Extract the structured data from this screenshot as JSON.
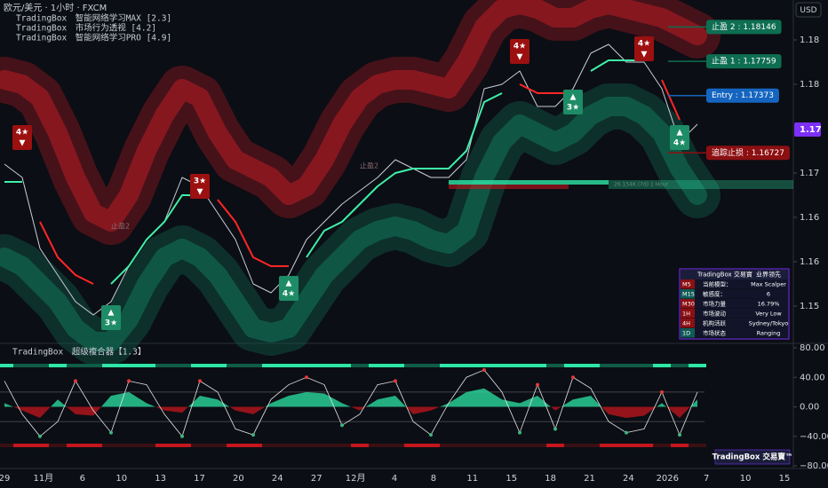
{
  "header": {
    "symbol": "欧元/美元 · 1小时 · FXCM",
    "indicators": [
      "TradingBox　智能网络学习MAX [2.3]",
      "TradingBox　市场行为透视 [4.2]",
      "TradingBox　智能网络学习PRO [4.9]"
    ]
  },
  "currency": "USD",
  "x_axis_labels": [
    "29",
    "11月",
    "6",
    "10",
    "13",
    "17",
    "20",
    "24",
    "27",
    "12月",
    "4",
    "8",
    "11",
    "15",
    "18",
    "21",
    "24",
    "2026",
    "7",
    "10",
    "15"
  ],
  "chart_data": [
    {
      "type": "line",
      "ylim": [
        1.146,
        1.1845
      ],
      "yticks": [
        1.18,
        {
          "value": 1.175,
          "label": "1.18"
        },
        {
          "value": 1.165,
          "label": "1.17"
        },
        1.16,
        {
          "value": 1.155,
          "label": "1.16"
        },
        1.15
      ],
      "current_price": {
        "value": 1.1699,
        "label": "1.17",
        "color": "#7b2ff7"
      },
      "bands": [
        {
          "color": "#8e1820",
          "values": [
            1.1755,
            1.175,
            1.1735,
            1.1695,
            1.1645,
            1.1605,
            1.1595,
            1.1625,
            1.1675,
            1.1715,
            1.1745,
            1.1735,
            1.1695,
            1.1665,
            1.1655,
            1.1645,
            1.1625,
            1.1635,
            1.1665,
            1.1705,
            1.1735,
            1.175,
            1.1755,
            1.1755,
            1.175,
            1.1745,
            1.1775,
            1.1815,
            1.1835,
            1.184,
            1.1835,
            1.1825,
            1.1825,
            1.1835,
            1.184,
            1.1835,
            1.183,
            1.1825,
            1.1815,
            1.1805
          ]
        },
        {
          "color": "#0f5c47",
          "values": [
            1.1555,
            1.1545,
            1.1525,
            1.1505,
            1.1475,
            1.146,
            1.146,
            1.1485,
            1.1525,
            1.1555,
            1.1565,
            1.1555,
            1.1535,
            1.1505,
            1.1475,
            1.147,
            1.1475,
            1.1505,
            1.1535,
            1.1555,
            1.1575,
            1.1585,
            1.159,
            1.1585,
            1.1575,
            1.157,
            1.1585,
            1.1645,
            1.1685,
            1.1705,
            1.1695,
            1.1685,
            1.1695,
            1.1715,
            1.1725,
            1.1725,
            1.1715,
            1.1695,
            1.1655,
            1.1625
          ]
        }
      ],
      "series": [
        {
          "color": "#c9ced8",
          "values": [
            1.166,
            1.1645,
            1.1565,
            1.1535,
            1.1505,
            1.149,
            1.1505,
            1.1545,
            1.1575,
            1.1595,
            1.1645,
            1.1635,
            1.1605,
            1.1575,
            1.1525,
            1.1515,
            1.1535,
            1.1575,
            1.1595,
            1.1615,
            1.163,
            1.1645,
            1.1665,
            1.1655,
            1.1645,
            1.1645,
            1.1665,
            1.1745,
            1.175,
            1.1765,
            1.1725,
            1.1725,
            1.1745,
            1.1785,
            1.1795,
            1.1775,
            1.1775,
            1.1745,
            1.1685,
            1.1705
          ]
        },
        {
          "color": "#3ff0a8",
          "values": [
            1.164,
            1.164,
            null,
            null,
            null,
            null,
            1.1525,
            1.1545,
            1.1575,
            1.1595,
            1.1625,
            1.1625,
            null,
            null,
            null,
            null,
            null,
            1.1555,
            1.1585,
            1.1595,
            1.1615,
            1.1635,
            1.165,
            1.1655,
            1.1655,
            1.1655,
            1.1675,
            1.173,
            1.174,
            null,
            null,
            null,
            null,
            1.1765,
            1.1777,
            1.1777,
            1.1777,
            null,
            null,
            1.1705
          ]
        },
        {
          "color": "#ff2626",
          "values": [
            null,
            null,
            1.1595,
            1.1555,
            1.1535,
            1.1525,
            null,
            null,
            null,
            null,
            null,
            null,
            1.162,
            1.1595,
            1.1555,
            1.1545,
            1.1545,
            null,
            null,
            null,
            null,
            null,
            null,
            null,
            null,
            null,
            null,
            null,
            null,
            1.175,
            1.174,
            1.174,
            1.174,
            null,
            null,
            null,
            null,
            1.1755,
            1.171,
            null
          ]
        }
      ],
      "trade_levels": [
        {
          "label": "止盈 2 : 1.18146",
          "value": 1.18146,
          "color": "#0e6e51"
        },
        {
          "label": "止盈 1 : 1.17759",
          "value": 1.17759,
          "color": "#0e6e51"
        },
        {
          "label": "Entry : 1.17373",
          "value": 1.17373,
          "color": "#1565c0"
        },
        {
          "label": "追踪止损 : 1.16727",
          "value": 1.16727,
          "color": "#8c0f12"
        }
      ],
      "signals": [
        {
          "index": 1,
          "price": 1.169,
          "label": "4★",
          "arrow": "▼",
          "color": "#9c1010"
        },
        {
          "index": 6,
          "price": 1.1487,
          "label": "3★",
          "arrow": "▲",
          "color": "#1e8c66"
        },
        {
          "index": 11,
          "price": 1.1635,
          "label": "3★",
          "arrow": "▼",
          "color": "#9c1010"
        },
        {
          "index": 16,
          "price": 1.152,
          "label": "4★",
          "arrow": "▲",
          "color": "#1e8c66"
        },
        {
          "index": 29,
          "price": 1.1787,
          "label": "4★",
          "arrow": "▼",
          "color": "#9c1010"
        },
        {
          "index": 32,
          "price": 1.173,
          "label": "3★",
          "arrow": "▲",
          "color": "#1e8c66"
        },
        {
          "index": 36,
          "price": 1.179,
          "label": "4★",
          "arrow": "▼",
          "color": "#9c1010"
        },
        {
          "index": 38,
          "price": 1.169,
          "label": "4★",
          "arrow": "▲",
          "color": "#1e8c66"
        }
      ],
      "annotations": [
        {
          "index": 6,
          "price": 1.159,
          "text": "止盈2"
        },
        {
          "index": 20,
          "price": 1.1658,
          "text": "止盈2"
        }
      ],
      "volume_note": {
        "text": "26.154K (7d) 1 Hour",
        "price": 1.1637,
        "start_index": 25,
        "end_index": 34
      }
    },
    {
      "type": "area",
      "title": "TradingBox　超级複合器【1.3】",
      "ylim": [
        -80,
        80
      ],
      "yticks": [
        {
          "value": 80,
          "label": "80.00"
        },
        {
          "value": 40,
          "label": "40.00"
        },
        {
          "value": 0,
          "label": "0.00"
        },
        {
          "value": -40,
          "label": "−40.00"
        },
        {
          "value": -80,
          "label": "−80.00"
        }
      ],
      "reference_lines": [
        20,
        -20
      ],
      "series": [
        {
          "color": "#2ee6a6",
          "negative_color": "#c4161c",
          "values": [
            5,
            -5,
            -15,
            10,
            -10,
            -12,
            15,
            20,
            5,
            -5,
            -8,
            15,
            10,
            -5,
            -10,
            5,
            15,
            20,
            18,
            5,
            -5,
            10,
            15,
            -10,
            -5,
            5,
            20,
            25,
            10,
            5,
            15,
            -5,
            10,
            15,
            -10,
            -15,
            -12,
            5,
            -15,
            10
          ]
        },
        {
          "color": "#e6e6e6",
          "values": [
            35,
            -10,
            -40,
            -20,
            35,
            -5,
            -35,
            35,
            30,
            -10,
            -40,
            35,
            20,
            -30,
            -38,
            10,
            30,
            40,
            30,
            -25,
            -10,
            30,
            35,
            -20,
            -38,
            5,
            40,
            50,
            20,
            -35,
            30,
            -30,
            40,
            25,
            -20,
            -35,
            -30,
            20,
            -38,
            20
          ]
        }
      ]
    }
  ],
  "table": {
    "title": "TradingBox 交易寶",
    "title_right": "业界领先",
    "row_colors": [
      "#8c0f12",
      "#0f5c57",
      "#8c0f12",
      "#8c0f12",
      "#8c0f12",
      "#0f5c57"
    ],
    "rows": [
      [
        "M5",
        "当前模型：",
        "Max Scalper"
      ],
      [
        "M15",
        "敏感度：",
        "6"
      ],
      [
        "M30",
        "市场力量",
        "16.79%"
      ],
      [
        "1H",
        "市场波动",
        "Very Low"
      ],
      [
        "4H",
        "机构活跃",
        "Sydney/Tokyo"
      ],
      [
        "1D",
        "市场状态",
        "Ranging"
      ]
    ]
  },
  "badge": "TradingBox 交易寶™"
}
